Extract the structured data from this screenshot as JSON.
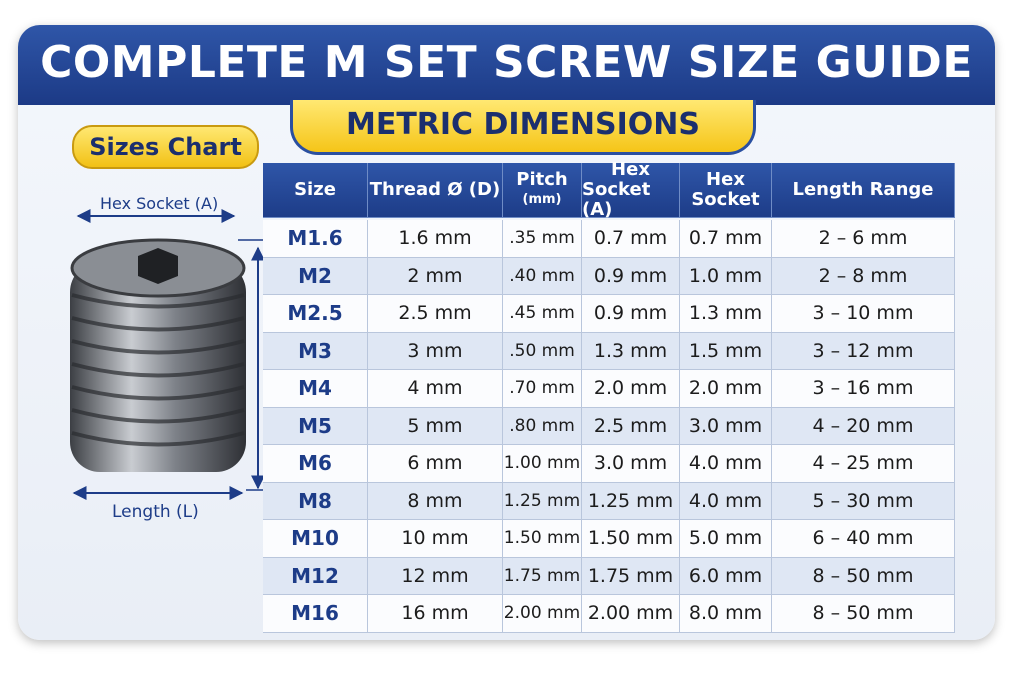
{
  "header": {
    "title": "COMPLETE M SET SCREW SIZE GUIDE",
    "subtitle": "METRIC DIMENSIONS",
    "badge": "Sizes Chart"
  },
  "diagram": {
    "hex_label": "Hex Socket (A)",
    "length_label": "Length (L)"
  },
  "table": {
    "columns": [
      [
        "Size"
      ],
      [
        "Thread Ø (D)"
      ],
      [
        "Pitch",
        "(mm)"
      ],
      [
        "Hex",
        "Socket (A)"
      ],
      [
        "Hex",
        "Socket"
      ],
      [
        "Length Range"
      ]
    ],
    "rows": [
      [
        "M1.6",
        "1.6 mm",
        ".35 mm",
        "0.7 mm",
        "0.7 mm",
        "2 – 6 mm"
      ],
      [
        "M2",
        "2 mm",
        ".40 mm",
        "0.9 mm",
        "1.0 mm",
        "2 – 8 mm"
      ],
      [
        "M2.5",
        "2.5 mm",
        ".45 mm",
        "0.9 mm",
        "1.3 mm",
        "3 – 10 mm"
      ],
      [
        "M3",
        "3 mm",
        ".50 mm",
        "1.3 mm",
        "1.5 mm",
        "3 – 12 mm"
      ],
      [
        "M4",
        "4 mm",
        ".70 mm",
        "2.0 mm",
        "2.0 mm",
        "3 – 16 mm"
      ],
      [
        "M5",
        "5 mm",
        ".80 mm",
        "2.5 mm",
        "3.0 mm",
        "4 – 20 mm"
      ],
      [
        "M6",
        "6 mm",
        "1.00 mm",
        "3.0 mm",
        "4.0 mm",
        "4 – 25 mm"
      ],
      [
        "M8",
        "8 mm",
        "1.25 mm",
        "1.25 mm",
        "4.0 mm",
        "5 – 30 mm"
      ],
      [
        "M10",
        "10 mm",
        "1.50 mm",
        "1.50 mm",
        "5.0 mm",
        "6 – 40 mm"
      ],
      [
        "M12",
        "12 mm",
        "1.75 mm",
        "1.75 mm",
        "6.0 mm",
        "8 – 50 mm"
      ],
      [
        "M16",
        "16 mm",
        "2.00 mm",
        "2.00 mm",
        "8.0 mm",
        "8 – 50 mm"
      ]
    ]
  }
}
